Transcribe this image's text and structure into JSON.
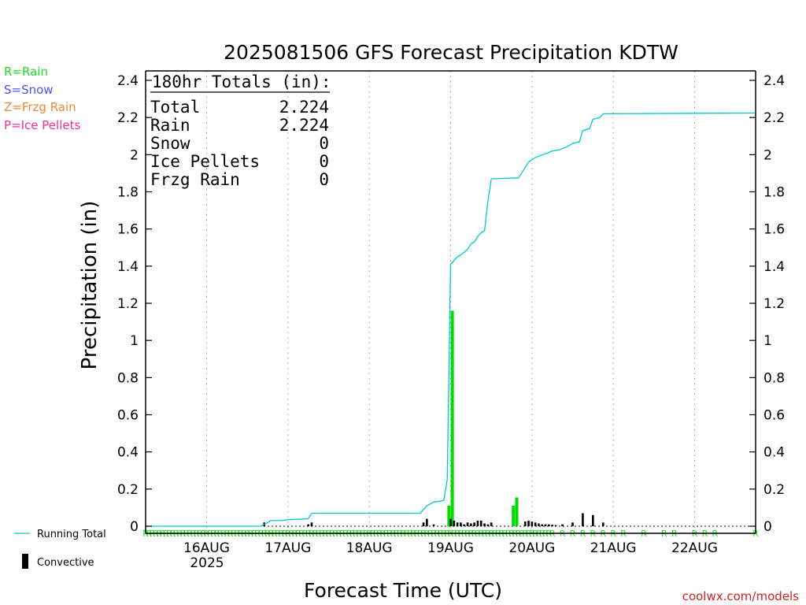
{
  "chart_data": {
    "type": "bar",
    "title": "2025081506 GFS Forecast Precipitation KDTW",
    "ylabel": "Precipitation (in)",
    "xlabel": "Forecast Time (UTC)",
    "ylim": [
      0,
      2.4
    ],
    "yticks": [
      "0",
      "0.2",
      "0.4",
      "0.6",
      "0.8",
      "1",
      "1.2",
      "1.4",
      "1.6",
      "1.8",
      "2",
      "2.2",
      "2.4"
    ],
    "x_axis_unit": "forecast hour",
    "xlim": [
      0,
      180
    ],
    "x_ticks": [
      {
        "label": "16AUG",
        "hour": 18
      },
      {
        "label": "17AUG",
        "hour": 42
      },
      {
        "label": "18AUG",
        "hour": 66
      },
      {
        "label": "19AUG",
        "hour": 90
      },
      {
        "label": "20AUG",
        "hour": 114
      },
      {
        "label": "21AUG",
        "hour": 138
      },
      {
        "label": "22AUG",
        "hour": 162
      }
    ],
    "year_label": "2025",
    "grid": "vertical dotted at day boundaries",
    "totals_box": {
      "header": "180hr Totals (in):",
      "rows": [
        {
          "label": "Total",
          "value": "2.224"
        },
        {
          "label": "Rain",
          "value": "2.224"
        },
        {
          "label": "Snow",
          "value": "0"
        },
        {
          "label": "Ice Pellets",
          "value": "0"
        },
        {
          "label": "Frzg Rain",
          "value": "0"
        }
      ]
    },
    "type_legend": [
      {
        "code": "R=Rain",
        "color": "#22dd22"
      },
      {
        "code": "S=Snow",
        "color": "#4455ff"
      },
      {
        "code": "Z=Frzg Rain",
        "color": "#ee8833"
      },
      {
        "code": "P=Ice Pellets",
        "color": "#ee3399"
      }
    ],
    "series_legend": [
      {
        "name": "Running Total",
        "color": "#00c8d2",
        "kind": "line"
      },
      {
        "name": "Convective",
        "color": "#000000",
        "kind": "bar"
      }
    ],
    "precip_type_marker": "R",
    "precip_type_hours_dense_end": 120,
    "precip_type_hours_sparse": [
      123,
      126,
      129,
      132,
      135,
      138,
      141,
      147,
      153,
      156,
      162,
      165,
      168,
      180
    ],
    "running_total": [
      [
        0,
        0
      ],
      [
        34,
        0
      ],
      [
        35,
        0.01
      ],
      [
        36,
        0.02
      ],
      [
        37,
        0.03
      ],
      [
        40,
        0.03
      ],
      [
        42,
        0.035
      ],
      [
        48,
        0.04
      ],
      [
        49,
        0.07
      ],
      [
        81,
        0.07
      ],
      [
        82,
        0.09
      ],
      [
        83,
        0.11
      ],
      [
        84,
        0.12
      ],
      [
        85,
        0.13
      ],
      [
        87,
        0.135
      ],
      [
        88,
        0.14
      ],
      [
        89,
        0.25
      ],
      [
        90,
        1.41
      ],
      [
        91,
        1.43
      ],
      [
        92,
        1.45
      ],
      [
        93,
        1.46
      ],
      [
        95,
        1.49
      ],
      [
        96,
        1.52
      ],
      [
        97,
        1.53
      ],
      [
        98,
        1.56
      ],
      [
        99,
        1.58
      ],
      [
        100,
        1.59
      ],
      [
        101,
        1.75
      ],
      [
        102,
        1.87
      ],
      [
        110,
        1.875
      ],
      [
        112,
        1.93
      ],
      [
        113,
        1.96
      ],
      [
        115,
        1.985
      ],
      [
        118,
        2.005
      ],
      [
        120,
        2.02
      ],
      [
        122,
        2.025
      ],
      [
        124,
        2.04
      ],
      [
        126,
        2.06
      ],
      [
        128,
        2.07
      ],
      [
        129,
        2.13
      ],
      [
        131,
        2.14
      ],
      [
        132,
        2.19
      ],
      [
        134,
        2.2
      ],
      [
        135,
        2.22
      ],
      [
        180,
        2.224
      ]
    ],
    "series": [
      {
        "name": "Rain",
        "color": "#00dd00",
        "points": [
          [
            89.5,
            0.11
          ],
          [
            90.5,
            1.16
          ],
          [
            108.5,
            0.11
          ],
          [
            109.5,
            0.155
          ]
        ]
      },
      {
        "name": "Convective",
        "color": "#000000",
        "points": [
          [
            35,
            0.02
          ],
          [
            48,
            0.01
          ],
          [
            49,
            0.02
          ],
          [
            82,
            0.02
          ],
          [
            83,
            0.04
          ],
          [
            85,
            0.01
          ],
          [
            90,
            0.04
          ],
          [
            91,
            0.03
          ],
          [
            92,
            0.02
          ],
          [
            93,
            0.02
          ],
          [
            94,
            0.01
          ],
          [
            95,
            0.02
          ],
          [
            96,
            0.015
          ],
          [
            97,
            0.02
          ],
          [
            98,
            0.03
          ],
          [
            99,
            0.03
          ],
          [
            100,
            0.015
          ],
          [
            101,
            0.01
          ],
          [
            102,
            0.02
          ],
          [
            112,
            0.025
          ],
          [
            113,
            0.03
          ],
          [
            114,
            0.025
          ],
          [
            115,
            0.02
          ],
          [
            116,
            0.015
          ],
          [
            117,
            0.01
          ],
          [
            118,
            0.01
          ],
          [
            119,
            0.01
          ],
          [
            120,
            0.008
          ],
          [
            121,
            0.006
          ],
          [
            123,
            0.01
          ],
          [
            126,
            0.02
          ],
          [
            129,
            0.07
          ],
          [
            132,
            0.06
          ],
          [
            135,
            0.02
          ]
        ]
      }
    ]
  },
  "credit": "coolwx.com/models"
}
